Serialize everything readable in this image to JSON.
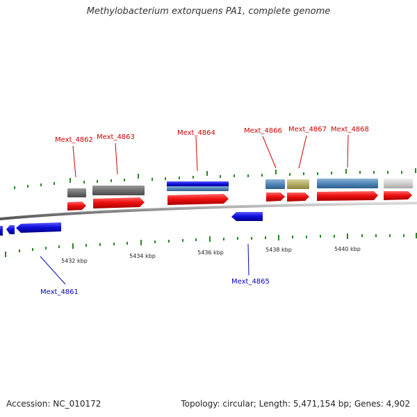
{
  "title": "Methylobacterium extorquens PA1, complete genome",
  "footer": {
    "accession": "Accession: NC_010172",
    "summary": "Topology: circular; Length: 5,471,154 bp; Genes: 4,902"
  },
  "colors": {
    "forward_gene": "#ee1111",
    "reverse_gene": "#1010dd",
    "forward_label": "#cc0000",
    "reverse_label": "#0000bb",
    "backbone": "#888888",
    "tick": "#228822"
  },
  "axis": {
    "unit": "kbp",
    "tick_labels": [
      "5432 kbp",
      "5434 kbp",
      "5436 kbp",
      "5438 kbp",
      "5440 kbp"
    ]
  },
  "genes": [
    {
      "label": "Mext_4861",
      "strand": "reverse"
    },
    {
      "label": "Mext_4862",
      "strand": "forward"
    },
    {
      "label": "Mext_4863",
      "strand": "forward"
    },
    {
      "label": "Mext_4864",
      "strand": "forward"
    },
    {
      "label": "Mext_4865",
      "strand": "reverse"
    },
    {
      "label": "Mext_4866",
      "strand": "forward"
    },
    {
      "label": "Mext_4867",
      "strand": "forward"
    },
    {
      "label": "Mext_4868",
      "strand": "forward"
    }
  ]
}
